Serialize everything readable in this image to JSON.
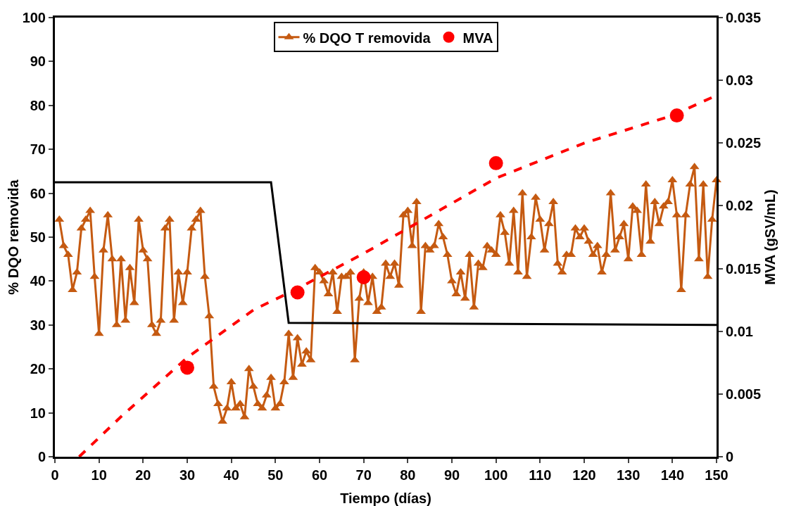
{
  "chart_data": {
    "type": "line",
    "xlabel": "Tiempo (días)",
    "ylabel": "% DQO removida",
    "y2label": "MVA (gSV/mL)",
    "xlim": [
      0,
      150
    ],
    "xticks": [
      0,
      10,
      20,
      30,
      40,
      50,
      60,
      70,
      80,
      90,
      100,
      110,
      120,
      130,
      140,
      150
    ],
    "ylim": [
      0,
      100
    ],
    "yticks": [
      0,
      10,
      20,
      30,
      40,
      50,
      60,
      70,
      80,
      90,
      100
    ],
    "y2lim": [
      0,
      0.035
    ],
    "y2ticks": [
      0,
      0.005,
      0.01,
      0.015,
      0.02,
      0.025,
      0.03,
      0.035
    ],
    "grid": false,
    "legend": "top",
    "series": [
      {
        "name": "% DQO T removida",
        "color": "#c55a11",
        "marker": "triangle",
        "line_style": "solid",
        "x": [
          1,
          2,
          3,
          4,
          5,
          6,
          7,
          8,
          9,
          10,
          11,
          12,
          13,
          14,
          15,
          16,
          17,
          18,
          19,
          20,
          21,
          22,
          23,
          24,
          25,
          26,
          27,
          28,
          29,
          30,
          31,
          32,
          33,
          34,
          35,
          36,
          37,
          38,
          39,
          40,
          41,
          42,
          43,
          44,
          45,
          46,
          47,
          48,
          49,
          50,
          51,
          52,
          53,
          54,
          55,
          56,
          57,
          58,
          59,
          60,
          61,
          62,
          63,
          64,
          65,
          66,
          67,
          68,
          69,
          70,
          71,
          72,
          73,
          74,
          75,
          76,
          77,
          78,
          79,
          80,
          81,
          82,
          83,
          84,
          85,
          86,
          87,
          88,
          89,
          90,
          91,
          92,
          93,
          94,
          95,
          96,
          97,
          98,
          99,
          100,
          101,
          102,
          103,
          104,
          105,
          106,
          107,
          108,
          109,
          110,
          111,
          112,
          113,
          114,
          115,
          116,
          117,
          118,
          119,
          120,
          121,
          122,
          123,
          124,
          125,
          126,
          127,
          128,
          129,
          130,
          131,
          132,
          133,
          134,
          135,
          136,
          137,
          138,
          139,
          140,
          141,
          142,
          143,
          144,
          145,
          146,
          147,
          148,
          149,
          150
        ],
        "values": [
          54,
          48,
          46,
          38,
          42,
          52,
          54,
          56,
          41,
          28,
          47,
          55,
          45,
          30,
          45,
          31,
          43,
          35,
          54,
          47,
          45,
          30,
          28,
          31,
          52,
          54,
          31,
          42,
          35,
          42,
          52,
          54,
          56,
          41,
          32,
          16,
          12,
          8,
          11,
          17,
          11,
          12,
          9,
          20,
          16,
          12,
          11,
          14,
          18,
          11,
          12,
          17,
          28,
          18,
          27,
          21,
          24,
          22,
          43,
          42,
          40,
          37,
          42,
          33,
          41,
          41,
          42,
          22,
          36,
          42,
          35,
          41,
          33,
          34,
          44,
          41,
          44,
          39,
          55,
          56,
          48,
          58,
          33,
          48,
          47,
          48,
          53,
          50,
          46,
          40,
          37,
          42,
          36,
          46,
          34,
          44,
          43,
          48,
          47,
          46,
          55,
          51,
          44,
          56,
          42,
          60,
          41,
          50,
          59,
          54,
          47,
          53,
          58,
          44,
          42,
          46,
          46,
          52,
          50,
          52,
          49,
          46,
          48,
          42,
          46,
          60,
          47,
          50,
          53,
          45,
          57,
          56,
          46,
          62,
          49,
          58,
          53,
          57,
          58,
          63,
          55,
          38,
          55,
          62,
          66,
          45,
          62,
          41,
          54,
          63
        ]
      },
      {
        "name": "MVA",
        "type": "scatter",
        "axis": "y2",
        "color": "#ff0000",
        "marker": "circle",
        "x": [
          30,
          55,
          70,
          100,
          141
        ],
        "values": [
          0.0071,
          0.0131,
          0.0143,
          0.0234,
          0.0272
        ]
      },
      {
        "type": "line",
        "axis": "y2",
        "color": "#ff0000",
        "marker": "none",
        "line_style": "dashed",
        "x": [
          5.5,
          15,
          30,
          45,
          55,
          70,
          80,
          100,
          120,
          140,
          150
        ],
        "values": [
          0,
          0.0032,
          0.0079,
          0.0117,
          0.0134,
          0.0162,
          0.0182,
          0.0222,
          0.025,
          0.0272,
          0.0288
        ]
      },
      {
        "type": "line",
        "color": "#000000",
        "marker": "none",
        "line_style": "solid",
        "x": [
          0,
          49,
          53,
          150
        ],
        "values": [
          62.5,
          62.5,
          30.5,
          30
        ]
      }
    ]
  }
}
